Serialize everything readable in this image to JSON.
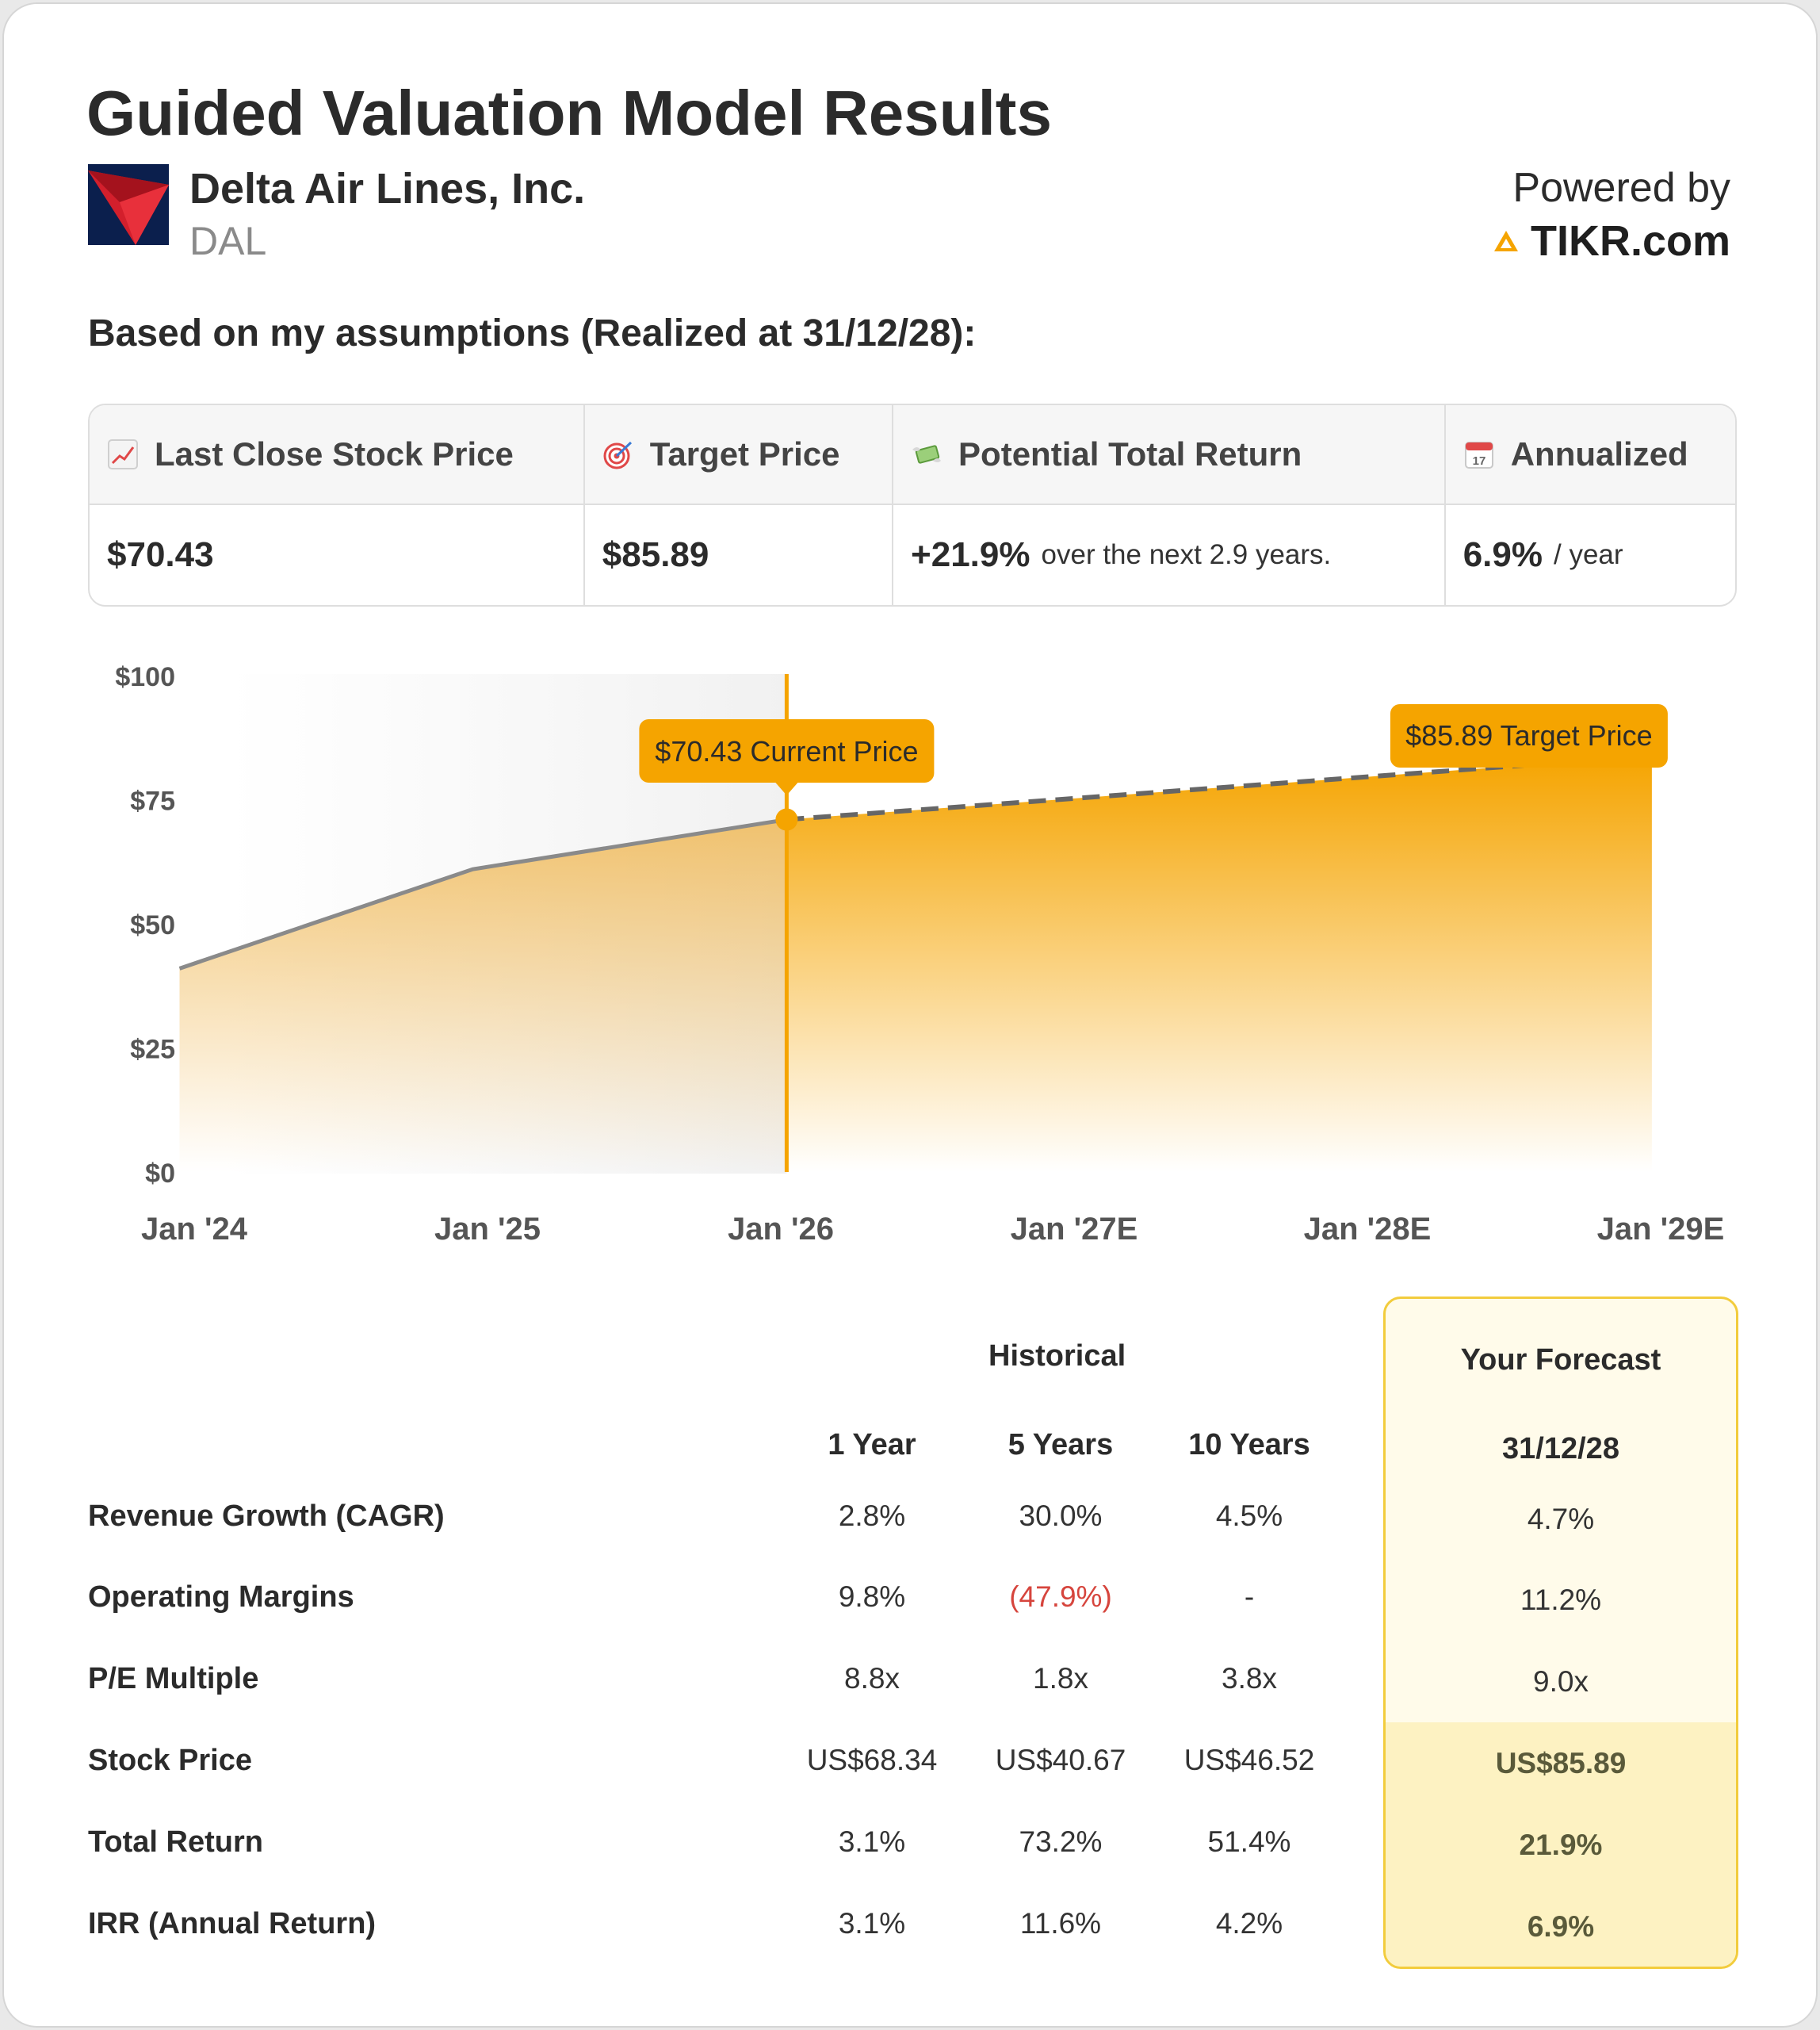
{
  "title": "Guided Valuation Model Results",
  "company": {
    "name": "Delta Air Lines, Inc.",
    "ticker": "DAL"
  },
  "powered_by": {
    "label": "Powered by",
    "brand": "TIKR.com"
  },
  "subtitle": "Based on my assumptions (Realized at 31/12/28):",
  "metrics": {
    "last_close": {
      "icon": "chart-up-icon",
      "label": "Last Close Stock Price",
      "value": "$70.43"
    },
    "target": {
      "icon": "target-icon",
      "label": "Target Price",
      "value": "$85.89"
    },
    "total_return": {
      "icon": "money-wings-icon",
      "label": "Potential Total Return",
      "value": "+21.9%",
      "note": "over the next 2.9 years."
    },
    "annualized": {
      "icon": "calendar-icon",
      "label": "Annualized",
      "value": "6.9%",
      "note": "/ year"
    }
  },
  "chart_data": {
    "type": "area",
    "y_ticks": [
      "$0",
      "$25",
      "$50",
      "$75",
      "$100"
    ],
    "x_ticks": [
      "Jan '24",
      "Jan '25",
      "Jan '26",
      "Jan '27E",
      "Jan '28E",
      "Jan '29E"
    ],
    "ylim": [
      0,
      100
    ],
    "historical": {
      "x": [
        2024.1,
        2025.1,
        2026.17
      ],
      "y": [
        41,
        61,
        71
      ]
    },
    "forecast": {
      "x": [
        2026.17,
        2028.7
      ],
      "y": [
        71,
        82
      ]
    },
    "forecast_end_x": 2029.12,
    "current_marker": {
      "x": 2026.17,
      "y": 71,
      "label": "$70.43 Current Price"
    },
    "target_marker": {
      "label": "$85.89 Target Price"
    },
    "colors": {
      "accent": "#f5a400",
      "line": "#8a8a8a",
      "dash": "#666666"
    }
  },
  "table": {
    "historical_label": "Historical",
    "forecast_label": "Your Forecast",
    "forecast_date": "31/12/28",
    "columns": [
      "1 Year",
      "5 Years",
      "10 Years"
    ],
    "rows": [
      {
        "label": "Revenue Growth (CAGR)",
        "values": [
          "2.8%",
          "30.0%",
          "4.5%"
        ],
        "forecast": "4.7%"
      },
      {
        "label": "Operating Margins",
        "values": [
          "9.8%",
          "(47.9%)",
          "-"
        ],
        "forecast": "11.2%"
      },
      {
        "label": "P/E Multiple",
        "values": [
          "8.8x",
          "1.8x",
          "3.8x"
        ],
        "forecast": "9.0x"
      },
      {
        "label": "Stock Price",
        "values": [
          "US$68.34",
          "US$40.67",
          "US$46.52"
        ],
        "forecast": "US$85.89"
      },
      {
        "label": "Total Return",
        "values": [
          "3.1%",
          "73.2%",
          "51.4%"
        ],
        "forecast": "21.9%"
      },
      {
        "label": "IRR (Annual Return)",
        "values": [
          "3.1%",
          "11.6%",
          "4.2%"
        ],
        "forecast": "6.9%"
      }
    ]
  }
}
